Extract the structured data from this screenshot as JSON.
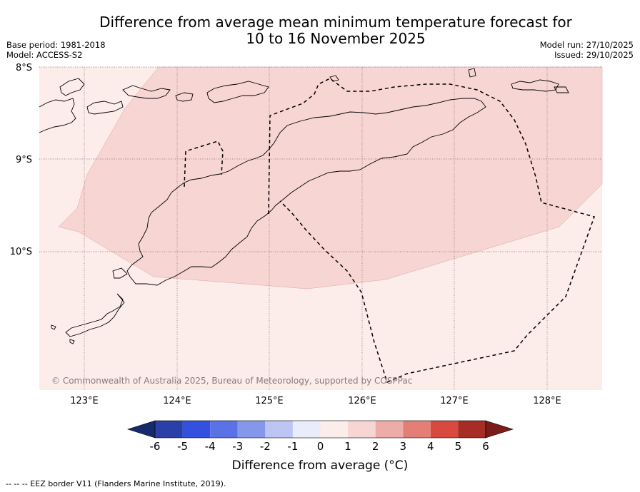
{
  "title_line1": "Difference from average mean minimum temperature forecast for",
  "title_line2": "10 to 16 November 2025",
  "base_period": "Base period: 1981-2018",
  "model": "Model: ACCESS-S2",
  "model_run": "Model run: 27/10/2025",
  "issued": "Issued: 29/10/2025",
  "copyright": "© Commonwealth of Australia 2025, Bureau of Meteorology, supported by COSPPac",
  "lat_labels": [
    "8°S",
    "9°S",
    "10°S"
  ],
  "lon_labels": [
    "123°E",
    "124°E",
    "125°E",
    "126°E",
    "127°E",
    "128°E"
  ],
  "colorbar": {
    "title": "Difference from average (°C)",
    "ticks": [
      "-6",
      "-5",
      "-4",
      "-3",
      "-2",
      "-1",
      "0",
      "1",
      "2",
      "3",
      "4",
      "5",
      "6"
    ],
    "colors": {
      "under": "#172a6e",
      "bins": [
        "#2a3fa8",
        "#3350de",
        "#5a72e6",
        "#8597ea",
        "#bcc5f3",
        "#e9ecfb",
        "#fcecea",
        "#f6d5d3",
        "#eeaca8",
        "#e47f77",
        "#d84a40",
        "#a62c24"
      ],
      "over": "#7a1d19"
    }
  },
  "map_colors": {
    "light_anomaly": "#fcecea",
    "medium_anomaly": "#f6d5d3"
  },
  "eez_note": "--  --  -- EEZ border V11 (Flanders Marine Institute, 2019)."
}
